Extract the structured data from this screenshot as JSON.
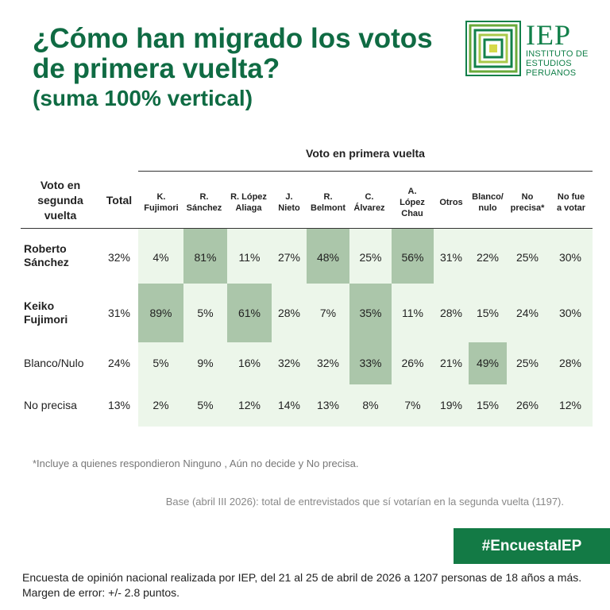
{
  "title_lines": [
    "¿Cómo han migrado los votos",
    "de primera vuelta?"
  ],
  "subtitle": "(suma 100% vertical)",
  "logo": {
    "name": "IEP",
    "line1": "INSTITUTO DE",
    "line2": "ESTUDIOS",
    "line3": "PERUANOS",
    "color": "#12804a"
  },
  "chart_data": {
    "type": "table",
    "group_header": "Voto en primera vuelta",
    "row_header": "Voto en segunda vuelta",
    "total_header": "Total",
    "columns": [
      {
        "lines": [
          "K.",
          "Fujimori"
        ]
      },
      {
        "lines": [
          "R.",
          "Sánchez"
        ]
      },
      {
        "lines": [
          "R. López",
          "Aliaga"
        ]
      },
      {
        "lines": [
          "J.",
          "Nieto"
        ]
      },
      {
        "lines": [
          "R.",
          "Belmont"
        ]
      },
      {
        "lines": [
          "C.",
          "Álvarez"
        ]
      },
      {
        "lines": [
          "A.",
          "López",
          "Chau"
        ]
      },
      {
        "lines": [
          "Otros"
        ]
      },
      {
        "lines": [
          "Blanco/",
          "nulo"
        ]
      },
      {
        "lines": [
          "No",
          "precisa*"
        ]
      },
      {
        "lines": [
          "No fue",
          "a votar"
        ]
      }
    ],
    "rows": [
      {
        "lines": [
          "Roberto",
          "Sánchez"
        ],
        "bold": true,
        "total": "32%",
        "values": [
          "4%",
          "81%",
          "11%",
          "27%",
          "48%",
          "25%",
          "56%",
          "31%",
          "22%",
          "25%",
          "30%"
        ],
        "highlight": [
          false,
          true,
          false,
          false,
          true,
          false,
          true,
          false,
          false,
          false,
          false
        ]
      },
      {
        "lines": [
          "Keiko",
          "Fujimori"
        ],
        "bold": true,
        "total": "31%",
        "values": [
          "89%",
          "5%",
          "61%",
          "28%",
          "7%",
          "35%",
          "11%",
          "28%",
          "15%",
          "24%",
          "30%"
        ],
        "highlight": [
          true,
          false,
          true,
          false,
          false,
          true,
          false,
          false,
          false,
          false,
          false
        ]
      },
      {
        "lines": [
          "Blanco/Nulo"
        ],
        "bold": false,
        "total": "24%",
        "values": [
          "5%",
          "9%",
          "16%",
          "32%",
          "32%",
          "33%",
          "26%",
          "21%",
          "49%",
          "25%",
          "28%"
        ],
        "highlight": [
          false,
          false,
          false,
          false,
          false,
          true,
          false,
          false,
          true,
          false,
          false
        ]
      },
      {
        "lines": [
          "No precisa"
        ],
        "bold": false,
        "total": "13%",
        "values": [
          "2%",
          "5%",
          "12%",
          "14%",
          "13%",
          "8%",
          "7%",
          "19%",
          "15%",
          "26%",
          "12%"
        ],
        "highlight": [
          false,
          false,
          false,
          false,
          false,
          false,
          false,
          false,
          false,
          false,
          false
        ]
      }
    ],
    "colors": {
      "highlight": "#abc6aa",
      "background": "#ecf6ea"
    }
  },
  "footnote": "*Incluye a quienes respondieron Ninguno , Aún no decide y No precisa.",
  "base_note": "Base (abril III 2026): total de entrevistados que sí votarían en la segunda vuelta (1197).",
  "hashtag": "#EncuestaIEP",
  "survey_note": "Encuesta de opinión nacional realizada por IEP, del 21 al 25 de abril de 2026 a 1207 personas de 18 años a más. Margen de error: +/- 2.8 puntos.",
  "colors": {
    "title": "#0f6b43",
    "badge": "#137a45"
  }
}
